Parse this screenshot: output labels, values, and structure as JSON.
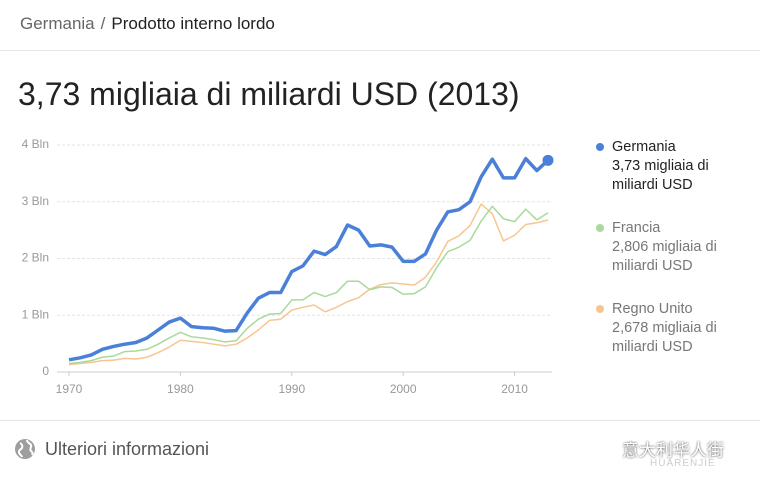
{
  "breadcrumb": {
    "country": "Germania",
    "separator": "/",
    "indicator": "Prodotto interno lordo"
  },
  "chart_data": {
    "type": "line",
    "title": "3,73 migliaia di miliardi USD (2013)",
    "x": [
      1970,
      1971,
      1972,
      1973,
      1974,
      1975,
      1976,
      1977,
      1978,
      1979,
      1980,
      1981,
      1982,
      1983,
      1984,
      1985,
      1986,
      1987,
      1988,
      1989,
      1990,
      1991,
      1992,
      1993,
      1994,
      1995,
      1996,
      1997,
      1998,
      1999,
      2000,
      2001,
      2002,
      2003,
      2004,
      2005,
      2006,
      2007,
      2008,
      2009,
      2010,
      2011,
      2012,
      2013
    ],
    "series": [
      {
        "name": "Germania",
        "legend_label": "3,73 migliaia di miliardi USD",
        "color": "#4a80d8",
        "values": [
          0.215,
          0.25,
          0.3,
          0.4,
          0.45,
          0.49,
          0.52,
          0.6,
          0.74,
          0.88,
          0.95,
          0.8,
          0.78,
          0.77,
          0.72,
          0.73,
          1.04,
          1.3,
          1.4,
          1.4,
          1.77,
          1.87,
          2.13,
          2.07,
          2.21,
          2.59,
          2.5,
          2.22,
          2.24,
          2.2,
          1.95,
          1.95,
          2.08,
          2.5,
          2.82,
          2.86,
          3.0,
          3.44,
          3.75,
          3.42,
          3.42,
          3.76,
          3.55,
          3.73
        ]
      },
      {
        "name": "Francia",
        "legend_label": "2,806 migliaia di miliardi USD",
        "color": "#a9d99b",
        "values": [
          0.15,
          0.17,
          0.2,
          0.26,
          0.28,
          0.36,
          0.37,
          0.4,
          0.49,
          0.6,
          0.7,
          0.62,
          0.6,
          0.57,
          0.53,
          0.55,
          0.77,
          0.93,
          1.02,
          1.03,
          1.27,
          1.27,
          1.4,
          1.33,
          1.4,
          1.6,
          1.6,
          1.45,
          1.5,
          1.49,
          1.37,
          1.38,
          1.5,
          1.84,
          2.12,
          2.2,
          2.32,
          2.66,
          2.92,
          2.7,
          2.65,
          2.87,
          2.68,
          2.806
        ]
      },
      {
        "name": "Regno Unito",
        "legend_label": "2,678 migliaia di miliardi USD",
        "color": "#f7c690",
        "values": [
          0.13,
          0.15,
          0.17,
          0.2,
          0.21,
          0.24,
          0.23,
          0.26,
          0.34,
          0.44,
          0.56,
          0.54,
          0.52,
          0.49,
          0.46,
          0.49,
          0.6,
          0.74,
          0.91,
          0.93,
          1.09,
          1.14,
          1.18,
          1.06,
          1.14,
          1.24,
          1.31,
          1.46,
          1.54,
          1.57,
          1.55,
          1.53,
          1.67,
          1.94,
          2.3,
          2.4,
          2.58,
          2.96,
          2.79,
          2.31,
          2.41,
          2.6,
          2.63,
          2.678
        ]
      }
    ],
    "xlim": [
      1970,
      2013
    ],
    "xticks": [
      1970,
      1980,
      1990,
      2000,
      2010
    ],
    "ylim": [
      0,
      4
    ],
    "yticks": [
      0,
      {
        "value": 1,
        "label": "1 Bln"
      },
      {
        "value": 2,
        "label": "2 Bln"
      },
      {
        "value": 3,
        "label": "3 Bln"
      },
      {
        "value": 4,
        "label": "4 Bln"
      }
    ],
    "grid": true
  },
  "footer": {
    "link": "Ulteriori informazioni"
  },
  "watermark": {
    "text": "意大利华人街",
    "subtext": "HUARENJIE"
  }
}
